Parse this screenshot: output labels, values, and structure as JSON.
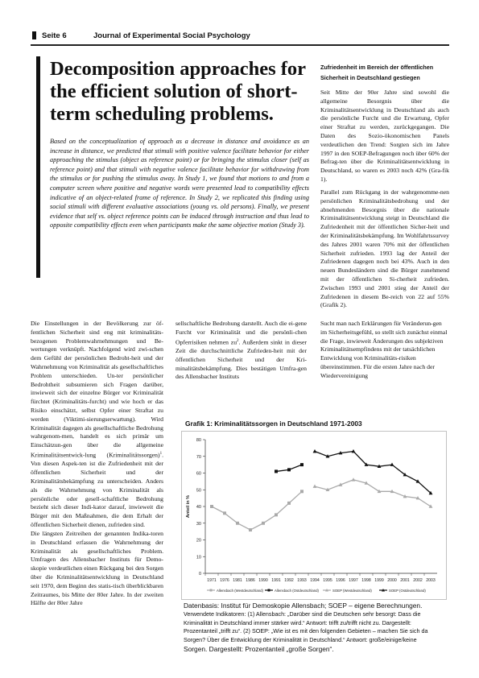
{
  "header": {
    "page": "Seite 6",
    "journal": "Journal of Experimental Social Psychology"
  },
  "title": "Decomposition approaches for the efficient solution of short-term scheduling problems.",
  "abstract": "Based on the conceptualization of approach as a decrease in distance and avoidance as an increase in distance, we predicted that stimuli with positive valence facilitate behavior for either approaching the stimulus (object as reference point) or for bringing the stimulus closer (self as reference point) and that stimuli with negative valence facilitate behavior for withdrawing from the stimulus or for pushing the stimulus away. In Study 1, we found that motions to and from a computer screen where positive and negative words were presented lead to compatibility effects indicative of an object-related frame of reference. In Study 2, we replicated this finding using social stimuli with different evaluative associations (young vs. old persons). Finally, we present evidence that self vs. object reference points can be induced through instruction and thus lead to opposite compatibility effects even when participants make the same objective motion (Study 3).",
  "right_column": {
    "heading": "Zufriedenheit im Bereich der öffentlichen Sicherheit in Deutschland gestiegen",
    "para1": "Seit Mitte der 90er Jahre sind sowohl die allgemeine Besorgnis über die Kriminalitätsentwicklung in Deutschland als auch die persönliche Furcht und die Erwartung, Opfer einer Straftat zu werden, zurückgegangen. Die Daten des Sozio-ökonomischen Panels verdeutlichen den Trend: Sorgten sich im Jahre 1997 in den SOEP-Befragungen noch über 60% der Befrag-ten über die Kriminalitätsentwicklung in Deutschland, so waren es 2003 noch 42% (Gra-fik 1).",
    "para2": "Parallel zum Rückgang in der wahrgenomme-nen persönlichen Kriminalitätsbedrohung und der abnehmenden Besorgnis über die nationale Kriminalitätsentwicklung steigt in Deutschland die Zufriedenheit mit der öffentlichen Sicher-heit und der Kriminalitätsbekämpfung. Im Wohlfahrtssurvey des Jahres 2001 waren 70% mit der öffentlichen Sicherheit zufrieden. 1993 lag der Anteil der Zufriedenen dagegen noch bei 43%. Auch in den neuen Bundesländern sind die Bürger zunehmend mit der öffentlichen Si-cherheit zufrieden. Zwischen 1993 und 2001 stieg der Anteil der Zufriedenen in diesem Be-reich von 22 auf 55% (Grafik 2)."
  },
  "columns": {
    "col1_a": "Die Einstellungen in der Bevölkerung zur öf-fentlichen Sicherheit sind eng mit kriminalitäts-bezogenen Problemwahrnehmungen und Be-wertungen verknüpft. Nachfolgend wird zwi-schen dem Gefühl der persönlichen Bedroht-heit und der Wahrnehmung von Kriminalität als gesellschaftliches Problem unterschieden. Un-ter persönlicher Bedrohtheit subsumieren sich Fragen darüber, inwieweit sich der einzelne Bürger vor Kriminalität fürchtet (Kriminalitäts-furcht) und wie hoch er das Risiko einschätzt, selbst Opfer einer Straftat zu werden (Viktimi-sierungserwartung). Wird Kriminalität dagegen als gesellschaftliche Bedrohung wahrgenom-men, handelt es sich primär um Einschätzun-gen über die allgemeine Kriminalitätsentwick-lung (Kriminalitätssorgen)",
    "col1_sup": "1",
    "col1_b": ". Von diesen Aspek-ten ist die Zufriedenheit mit der öffentlichen Sicherheit und der Kriminalitätsbekämpfung zu unterscheiden. Anders als die Wahrnehmung von Kriminalität als persönliche oder gesell-schaftliche Bedrohung bezieht sich dieser Indi-kator darauf, inwieweit die Bürger mit den Maßnahmen, die dem Erhalt der öffentlichen Sicherheit dienen, zufrieden sind.",
    "col1_c": "Die längsten Zeitreihen der genannten Indika-toren in Deutschland erfassen die Wahrnehmung der Kriminalität als gesellschaftliches Problem. Umfragen des Allensbacher Instituts für Demo-skopie verdeutlichen einen Rückgang bei den Sorgen über die Kriminalitätsentwicklung in Deutschland seit 1970, dem Beginn des statis-tisch überblickbaren Zeitraumes, bis Mitte der 80er Jahre. In der zweiten Hälfte der 80er Jahre",
    "col2_a": "sellschaftliche Bedrohung darstellt. Auch die ei-gene Furcht vor Kriminalität und die persönli-chen Opferrisiken nehmen zu",
    "col2_sup": "2",
    "col2_b": ". Außerdem sinkt in dieser Zeit die durchschnittliche Zufrieden-heit mit der öffentlichen Sicherheit und der Kri-minalitätsbekämpfung. Dies bestätigen Umfra-gen des Allensbacher Instituts",
    "col3": "Sucht man nach Erklärungen für Veränderun-gen im Sicherheitsgefühl, so stellt sich zunächst einmal die Frage, inwieweit Änderungen des subjektiven Kriminalitätsempfindens mit der tatsächlichen Entwicklung von Kriminalitäts-risiken übereinstimmen. Für die ersten Jahre nach der Wiedervereinigung"
  },
  "chart_title": "Grafik 1: Kriminalitätssorgen in Deutschland 1971-2003",
  "chart_data": {
    "type": "line",
    "title": "Grafik 1: Kriminalitätssorgen in Deutschland 1971-2003",
    "xlabel": "",
    "ylabel": "Anteil in %",
    "ylim": [
      0,
      80
    ],
    "yticks": [
      0,
      10,
      20,
      30,
      40,
      50,
      60,
      70,
      80
    ],
    "grid": false,
    "legend_placement": "bottom",
    "categories": [
      "1971",
      "1976",
      "1981",
      "1986",
      "1990",
      "1991",
      "1992",
      "1993",
      "1994",
      "1995",
      "1996",
      "1997",
      "1998",
      "1999",
      "2000",
      "2001",
      "2002",
      "2003"
    ],
    "series": [
      {
        "name": "Allensbach (Westdeutschland)",
        "color": "#aaaaaa",
        "marker": "square",
        "values": [
          40,
          36,
          30,
          26,
          30,
          35,
          42,
          49,
          null,
          null,
          null,
          null,
          null,
          null,
          null,
          null,
          null,
          null
        ]
      },
      {
        "name": "Allensbach (Ostdeutschland)",
        "color": "#111111",
        "marker": "square",
        "values": [
          null,
          null,
          null,
          null,
          null,
          61,
          62,
          65,
          null,
          null,
          null,
          null,
          null,
          null,
          null,
          null,
          null,
          null
        ]
      },
      {
        "name": "SOEP (Westdeutschland)",
        "color": "#aaaaaa",
        "marker": "triangle",
        "values": [
          null,
          null,
          null,
          null,
          null,
          null,
          null,
          null,
          52,
          50,
          53,
          56,
          54,
          49,
          49,
          46,
          45,
          40
        ]
      },
      {
        "name": "SOEP (Ostdeutschland)",
        "color": "#111111",
        "marker": "triangle",
        "values": [
          null,
          null,
          null,
          null,
          null,
          null,
          null,
          null,
          73,
          70,
          72,
          73,
          65,
          64,
          65,
          59,
          55,
          48
        ]
      }
    ]
  },
  "caption": {
    "lead": "Datenbasis: Institut für Demoskopie Allensbach; SOEP – eigene Berechnungen.",
    "body": "Verwendete Indikatoren: (1) Allensbach: „Darüber sind die Deutschen sehr besorgt: Dass die Kriminalität in Deutschland immer stärker wird.“ Antwort: trifft zu/trifft nicht zu. Dargestellt: Prozentanteil „trifft zu“. (2) SOEP: „Wie ist es mit den folgenden Gebieten – machen Sie sich da Sorgen? Über die Entwicklung der Kriminalität in Deutschland.“ Antwort: große/einige/keine",
    "end": "Sorgen. Dargestellt: Prozentanteil „große Sorgen“."
  }
}
